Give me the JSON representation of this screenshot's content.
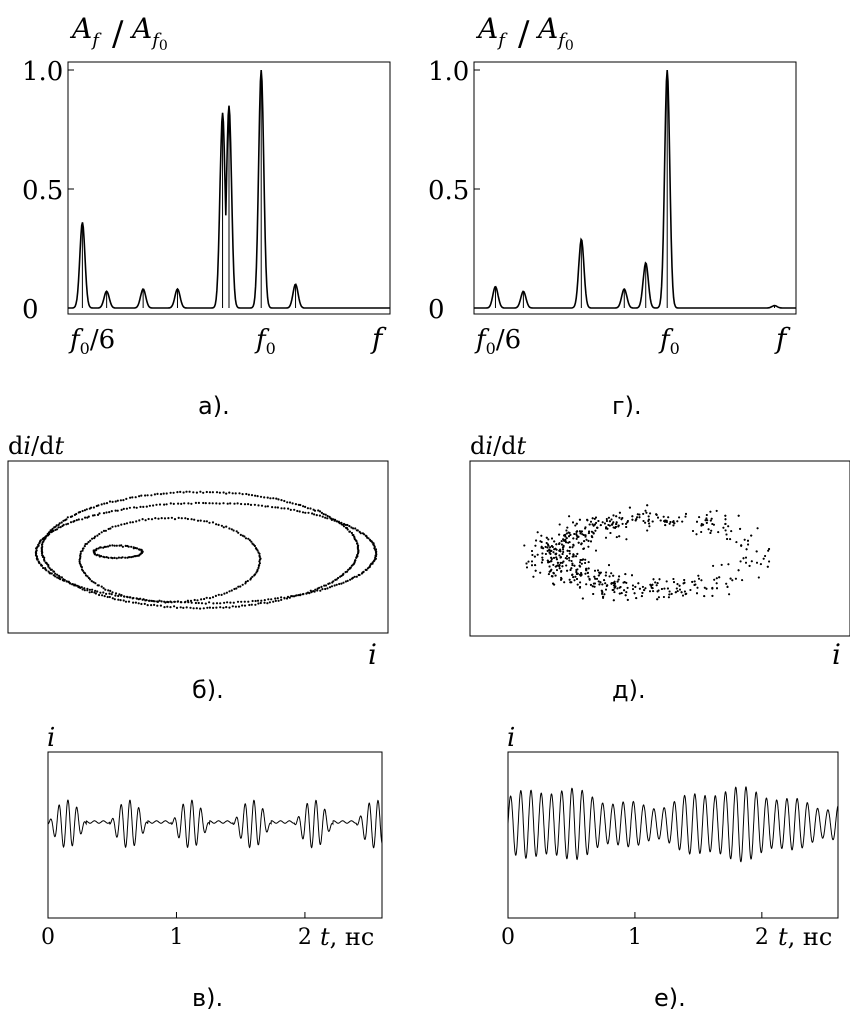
{
  "figure": {
    "panels": [
      {
        "id": "a",
        "caption": "а)."
      },
      {
        "id": "b",
        "caption": "б)."
      },
      {
        "id": "v",
        "caption": "в)."
      },
      {
        "id": "g",
        "caption": "г)."
      },
      {
        "id": "d",
        "caption": "д)."
      },
      {
        "id": "e",
        "caption": "е)."
      }
    ]
  },
  "chart_data": [
    {
      "panel": "а)",
      "type": "line",
      "title": "",
      "ylabel": "A_f / A_f0",
      "xlabel": "f",
      "xticks": [
        "f0/6",
        "f0"
      ],
      "yticks": [
        "0",
        "0.5",
        "1.0"
      ],
      "ylim": [
        0,
        1.0
      ],
      "xlim": [
        0.1,
        1.6
      ],
      "x_scale": "f / f0",
      "peaks": [
        {
          "x": 0.167,
          "y": 0.36
        },
        {
          "x": 0.28,
          "y": 0.07
        },
        {
          "x": 0.45,
          "y": 0.08
        },
        {
          "x": 0.61,
          "y": 0.08
        },
        {
          "x": 0.82,
          "y": 0.82
        },
        {
          "x": 0.85,
          "y": 0.85
        },
        {
          "x": 1.0,
          "y": 1.0
        },
        {
          "x": 1.16,
          "y": 0.1
        }
      ]
    },
    {
      "panel": "г)",
      "type": "line",
      "title": "",
      "ylabel": "A_f / A_f0",
      "xlabel": "f",
      "xticks": [
        "f0/6",
        "f0"
      ],
      "yticks": [
        "0",
        "0.5",
        "1.0"
      ],
      "ylim": [
        0,
        1.0
      ],
      "xlim": [
        0.1,
        1.6
      ],
      "x_scale": "f / f0",
      "peaks": [
        {
          "x": 0.2,
          "y": 0.09
        },
        {
          "x": 0.33,
          "y": 0.07
        },
        {
          "x": 0.6,
          "y": 0.29
        },
        {
          "x": 0.8,
          "y": 0.08
        },
        {
          "x": 0.9,
          "y": 0.19
        },
        {
          "x": 1.0,
          "y": 1.0
        },
        {
          "x": 1.5,
          "y": 0.01
        }
      ]
    },
    {
      "panel": "б)",
      "type": "scatter",
      "xlabel": "i",
      "ylabel": "di/dt",
      "description": "phase portrait, quasi-periodic multi-loop orbit"
    },
    {
      "panel": "д)",
      "type": "scatter",
      "xlabel": "i",
      "ylabel": "di/dt",
      "description": "phase portrait, chaotic diffuse attractor"
    },
    {
      "panel": "в)",
      "type": "line",
      "xlabel_var": "t",
      "xlabel_unit": "нс",
      "ylabel": "i",
      "xticks": [
        "0",
        "1",
        "2"
      ],
      "xlim": [
        0,
        2.6
      ]
    },
    {
      "panel": "е)",
      "type": "line",
      "xlabel_var": "t",
      "xlabel_unit": "нс",
      "ylabel": "i",
      "xticks": [
        "0",
        "1",
        "2"
      ],
      "xlim": [
        0,
        2.6
      ]
    }
  ]
}
